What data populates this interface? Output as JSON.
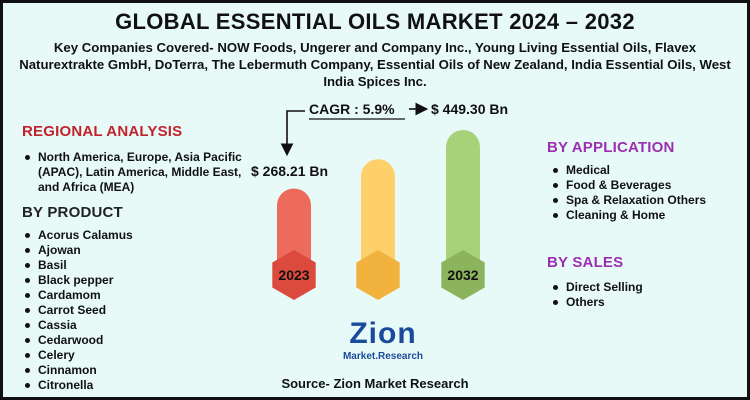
{
  "title": "GLOBAL ESSENTIAL OILS MARKET 2024 – 2032",
  "subtitle": "Key Companies Covered- NOW Foods, Ungerer and Company Inc., Young Living Essential Oils, Flavex Naturextrakte GmbH, DoTerra, The Lebermuth Company, Essential Oils of New Zealand, India Essential Oils, West India Spices Inc.",
  "regional": {
    "heading": "REGIONAL ANALYSIS",
    "items": [
      "North America, Europe, Asia Pacific (APAC), Latin America, Middle East, and Africa (MEA)"
    ]
  },
  "product": {
    "heading": "BY PRODUCT",
    "items": [
      "Acorus Calamus",
      "Ajowan",
      "Basil",
      "Black pepper",
      "Cardamom",
      "Carrot Seed",
      "Cassia",
      "Cedarwood",
      "Celery",
      "Cinnamon",
      "Citronella"
    ]
  },
  "application": {
    "heading": "BY APPLICATION",
    "items": [
      "Medical",
      "Food & Beverages",
      "Spa & Relaxation Others",
      "Cleaning & Home"
    ]
  },
  "sales": {
    "heading": "BY SALES",
    "items": [
      "Direct Selling",
      "Others"
    ]
  },
  "chart_data": {
    "type": "bar",
    "categories": [
      "2023",
      "",
      "2032"
    ],
    "values": [
      268.21,
      null,
      449.3
    ],
    "value_labels": [
      "$ 268.21 Bn",
      "",
      "$ 449.30 Bn"
    ],
    "cagr_label": "CAGR : 5.9%",
    "colors": {
      "bar1_body": "#ec6b5a",
      "bar1_base": "#dc4a3e",
      "bar2_body": "#fed06a",
      "bar2_base": "#f1b33e",
      "bar3_body": "#a8d27a",
      "bar3_base": "#8cb45c"
    }
  },
  "logo": {
    "main": "Zion",
    "sub": "Market.Research"
  },
  "source": "Source- Zion Market Research",
  "colors": {
    "background": "#e8faf8",
    "heading_red": "#c0242a",
    "heading_purple": "#9b2fb0"
  }
}
